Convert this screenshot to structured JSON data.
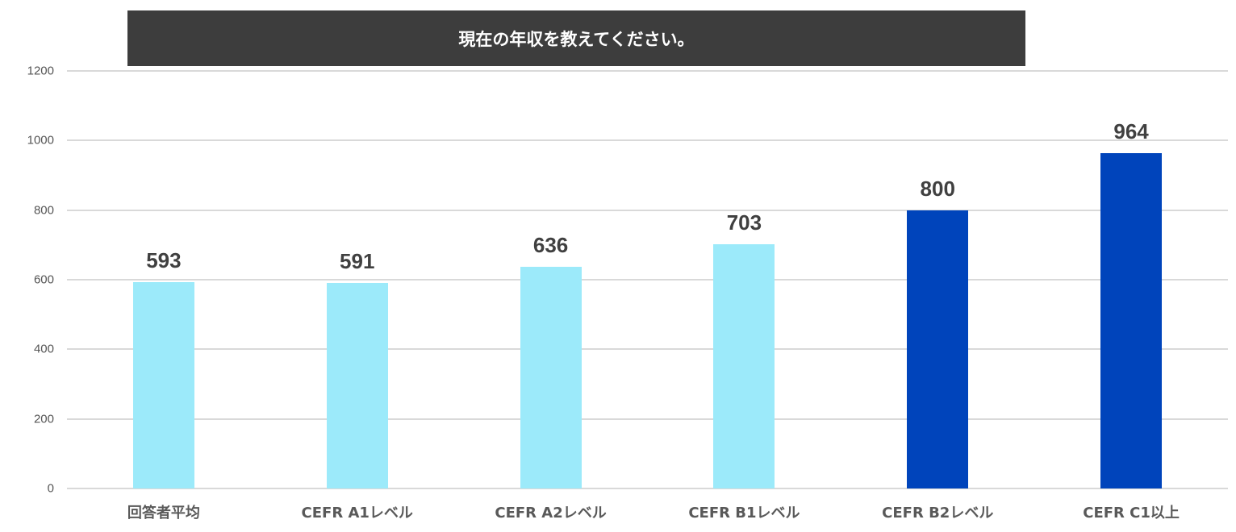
{
  "chart_data": {
    "type": "bar",
    "title": "現在の年収を教えてください。",
    "categories": [
      "回答者平均",
      "CEFR A1レベル",
      "CEFR A2レベル",
      "CEFR B1レベル",
      "CEFR B2レベル",
      "CEFR C1以上"
    ],
    "values": [
      593,
      591,
      636,
      703,
      800,
      964
    ],
    "bar_colors": [
      "#9ceafa",
      "#9ceafa",
      "#9ceafa",
      "#9ceafa",
      "#0044bb",
      "#0044bb"
    ],
    "xlabel": "",
    "ylabel": "",
    "ylim": [
      0,
      1200
    ],
    "yticks": [
      0,
      200,
      400,
      600,
      800,
      1000,
      1200
    ],
    "grid": true,
    "legend": null,
    "data_labels": true
  },
  "colors": {
    "title_bg": "#3d3d3d",
    "light_bar": "#9ceafa",
    "dark_bar": "#0044bb",
    "gridline": "#d9d9d9"
  }
}
